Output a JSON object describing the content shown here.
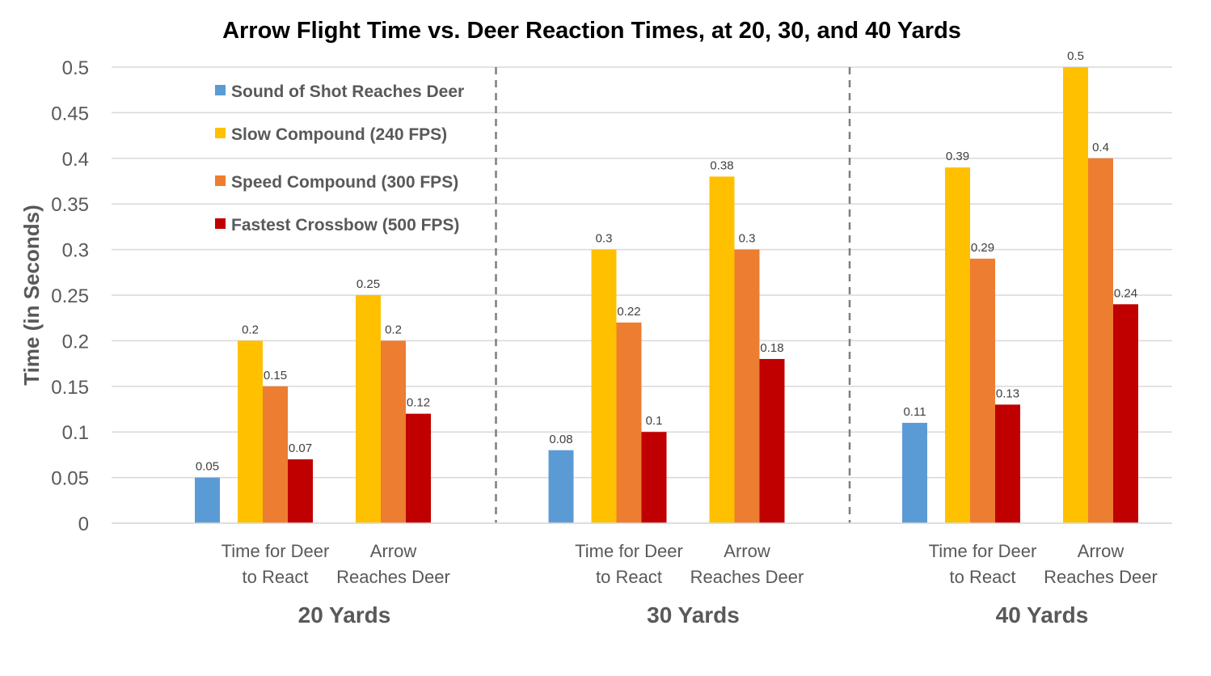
{
  "chart_data": {
    "type": "bar",
    "title": "Arrow Flight Time vs. Deer Reaction Times, at 20, 30, and 40 Yards",
    "ylabel": "Time (in Seconds)",
    "ylim": [
      0,
      0.5
    ],
    "yticks": [
      "0",
      "0.05",
      "0.1",
      "0.15",
      "0.2",
      "0.25",
      "0.3",
      "0.35",
      "0.4",
      "0.45",
      "0.5"
    ],
    "grid": true,
    "legend_position": "top-left",
    "series": [
      {
        "name": "Sound of Shot Reaches Deer",
        "color": "#5B9BD5"
      },
      {
        "name": "Slow Compound (240 FPS)",
        "color": "#FFC000"
      },
      {
        "name": "Speed Compound (300 FPS)",
        "color": "#ED7D31"
      },
      {
        "name": "Fastest Crossbow (500 FPS)",
        "color": "#C00000"
      }
    ],
    "groups": [
      {
        "name": "20 Yards",
        "sound": 0.05,
        "categories": [
          {
            "label": [
              "Time for Deer",
              "to React"
            ],
            "values": [
              0.2,
              0.15,
              0.07
            ]
          },
          {
            "label": [
              "Arrow",
              "Reaches Deer"
            ],
            "values": [
              0.25,
              0.2,
              0.12
            ]
          }
        ]
      },
      {
        "name": "30 Yards",
        "sound": 0.08,
        "categories": [
          {
            "label": [
              "Time for Deer",
              "to React"
            ],
            "values": [
              0.3,
              0.22,
              0.1
            ]
          },
          {
            "label": [
              "Arrow",
              "Reaches Deer"
            ],
            "values": [
              0.38,
              0.3,
              0.18
            ]
          }
        ]
      },
      {
        "name": "40 Yards",
        "sound": 0.11,
        "categories": [
          {
            "label": [
              "Time for Deer",
              "to React"
            ],
            "values": [
              0.39,
              0.29,
              0.13
            ]
          },
          {
            "label": [
              "Arrow",
              "Reaches Deer"
            ],
            "values": [
              0.5,
              0.4,
              0.24
            ]
          }
        ]
      }
    ]
  }
}
